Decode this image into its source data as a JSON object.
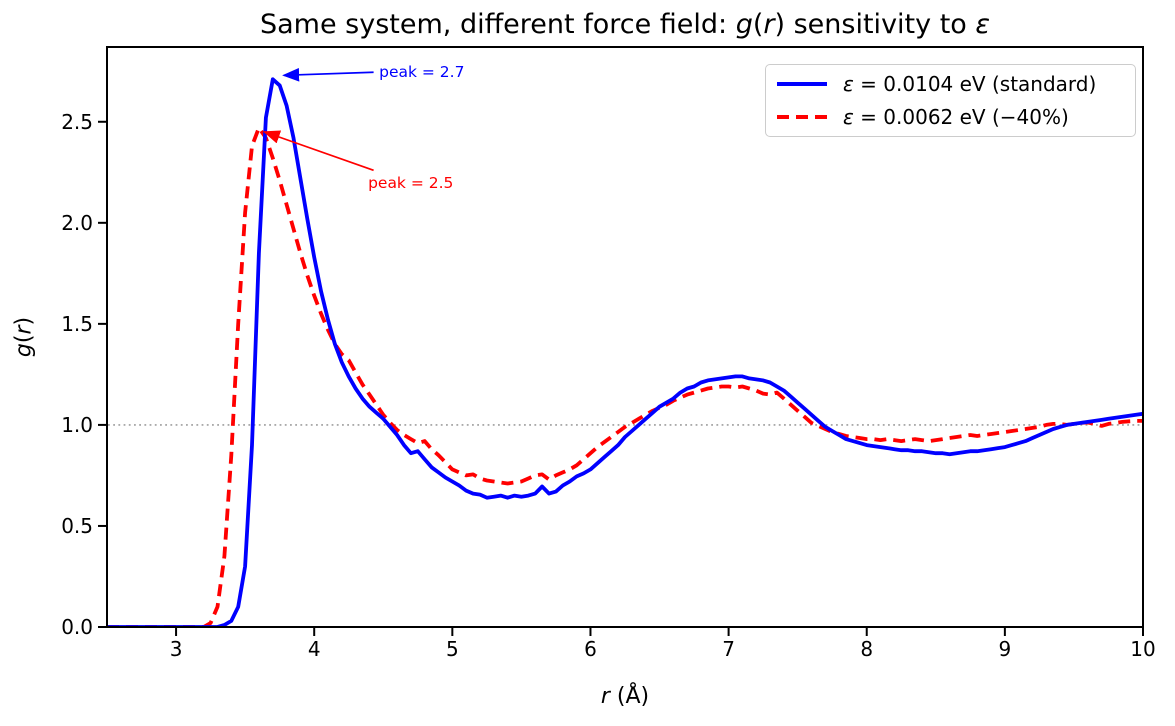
{
  "labels": {
    "title_pre": "Same system, different force field: ",
    "title_g": "g",
    "title_paren1": "(",
    "title_r": "r",
    "title_mid": ") sensitivity to ",
    "title_eps": "ε",
    "xlabel_r": "r",
    "xlabel_rest": " (Å)",
    "ylabel_g": "g",
    "ylabel_p1": "(",
    "ylabel_r": "r",
    "ylabel_p2": ")"
  },
  "legend": {
    "items": [
      {
        "epsilon": "ε",
        "rest": " = 0.0104 eV (standard)"
      },
      {
        "epsilon": "ε",
        "rest": " = 0.0062 eV (−40%)"
      }
    ]
  },
  "annotations": [
    {
      "text": "peak = 2.7",
      "color": "#0000ff",
      "text_r": 4.47,
      "text_g": 2.79,
      "tail_r": 4.43,
      "tail_g": 2.745,
      "tip_r": 3.78,
      "tip_g": 2.73
    },
    {
      "text": "peak = 2.5",
      "color": "#ff0000",
      "text_r": 4.39,
      "text_g": 2.243,
      "tail_r": 4.43,
      "tail_g": 2.26,
      "tip_r": 3.64,
      "tip_g": 2.45
    }
  ],
  "chart_data": {
    "type": "line",
    "title": "Same system, different force field: g(r) sensitivity to ε",
    "xlabel": "r (Å)",
    "ylabel": "g(r)",
    "xlim": [
      2.5,
      10.0
    ],
    "ylim": [
      0.0,
      2.87
    ],
    "x_ticks": [
      3,
      4,
      5,
      6,
      7,
      8,
      9,
      10
    ],
    "y_ticks": [
      0.0,
      0.5,
      1.0,
      1.5,
      2.0,
      2.5
    ],
    "y_tick_labels": [
      "0.0",
      "0.5",
      "1.0",
      "1.5",
      "2.0",
      "2.5"
    ],
    "grid": false,
    "legend_position": "upper right",
    "reference_line": {
      "y": 1.0,
      "style": "dotted",
      "color": "#9e9e9e"
    },
    "r_start": 2.5,
    "r_step": 0.05,
    "series": [
      {
        "name": "ε = 0.0104 eV (standard)",
        "color": "#0000ff",
        "style": "solid",
        "peak_label": "peak = 2.7",
        "peak_r": 3.7,
        "peak_g": 2.71,
        "values": [
          0,
          0,
          0,
          0,
          0,
          0,
          0,
          0,
          0,
          0,
          0,
          0,
          0,
          0,
          0,
          0,
          0,
          0.01,
          0.03,
          0.1,
          0.3,
          0.9,
          1.85,
          2.52,
          2.71,
          2.68,
          2.58,
          2.42,
          2.22,
          2.02,
          1.83,
          1.66,
          1.52,
          1.4,
          1.31,
          1.24,
          1.18,
          1.13,
          1.09,
          1.06,
          1.03,
          0.99,
          0.95,
          0.9,
          0.86,
          0.87,
          0.83,
          0.79,
          0.765,
          0.74,
          0.72,
          0.7,
          0.675,
          0.66,
          0.655,
          0.64,
          0.645,
          0.65,
          0.64,
          0.65,
          0.645,
          0.65,
          0.66,
          0.695,
          0.66,
          0.67,
          0.7,
          0.72,
          0.745,
          0.76,
          0.78,
          0.81,
          0.84,
          0.87,
          0.9,
          0.94,
          0.97,
          1.0,
          1.03,
          1.06,
          1.09,
          1.11,
          1.13,
          1.16,
          1.18,
          1.19,
          1.21,
          1.22,
          1.225,
          1.23,
          1.235,
          1.24,
          1.24,
          1.23,
          1.225,
          1.22,
          1.21,
          1.19,
          1.17,
          1.14,
          1.11,
          1.08,
          1.05,
          1.02,
          0.99,
          0.97,
          0.95,
          0.93,
          0.92,
          0.91,
          0.9,
          0.895,
          0.89,
          0.885,
          0.88,
          0.875,
          0.875,
          0.87,
          0.87,
          0.865,
          0.86,
          0.86,
          0.855,
          0.86,
          0.865,
          0.87,
          0.87,
          0.875,
          0.88,
          0.885,
          0.89,
          0.9,
          0.91,
          0.92,
          0.935,
          0.95,
          0.965,
          0.98,
          0.99,
          1.0,
          1.005,
          1.01,
          1.015,
          1.02,
          1.025,
          1.03,
          1.035,
          1.04,
          1.045,
          1.05,
          1.055
        ]
      },
      {
        "name": "ε = 0.0062 eV (−40%)",
        "color": "#ff0000",
        "style": "dashed",
        "peak_label": "peak = 2.5",
        "peak_r": 3.6,
        "peak_g": 2.47,
        "values": [
          0,
          0,
          0,
          0,
          0,
          0,
          0,
          0,
          0,
          0,
          0,
          0,
          0,
          0,
          0,
          0.02,
          0.1,
          0.35,
          0.85,
          1.5,
          2.05,
          2.38,
          2.47,
          2.42,
          2.32,
          2.21,
          2.09,
          1.97,
          1.85,
          1.74,
          1.64,
          1.55,
          1.47,
          1.4,
          1.35,
          1.32,
          1.26,
          1.2,
          1.15,
          1.1,
          1.05,
          1.01,
          0.975,
          0.95,
          0.93,
          0.91,
          0.92,
          0.88,
          0.85,
          0.815,
          0.78,
          0.765,
          0.75,
          0.755,
          0.735,
          0.725,
          0.72,
          0.715,
          0.71,
          0.715,
          0.72,
          0.735,
          0.75,
          0.755,
          0.73,
          0.75,
          0.765,
          0.78,
          0.8,
          0.83,
          0.86,
          0.89,
          0.915,
          0.94,
          0.965,
          0.99,
          1.01,
          1.03,
          1.05,
          1.07,
          1.085,
          1.1,
          1.12,
          1.135,
          1.15,
          1.16,
          1.17,
          1.18,
          1.185,
          1.19,
          1.19,
          1.185,
          1.19,
          1.18,
          1.17,
          1.155,
          1.15,
          1.16,
          1.13,
          1.1,
          1.07,
          1.04,
          1.01,
          0.995,
          0.98,
          0.965,
          0.955,
          0.945,
          0.94,
          0.935,
          0.93,
          0.93,
          0.925,
          0.93,
          0.925,
          0.92,
          0.925,
          0.93,
          0.925,
          0.92,
          0.925,
          0.93,
          0.935,
          0.94,
          0.945,
          0.95,
          0.945,
          0.95,
          0.955,
          0.96,
          0.965,
          0.97,
          0.975,
          0.98,
          0.985,
          0.99,
          1.0,
          1.005,
          1.005,
          1.0,
          1.005,
          1.01,
          1.012,
          1.005,
          0.995,
          1.005,
          1.01,
          1.015,
          1.018,
          1.02,
          1.02
        ]
      }
    ]
  }
}
